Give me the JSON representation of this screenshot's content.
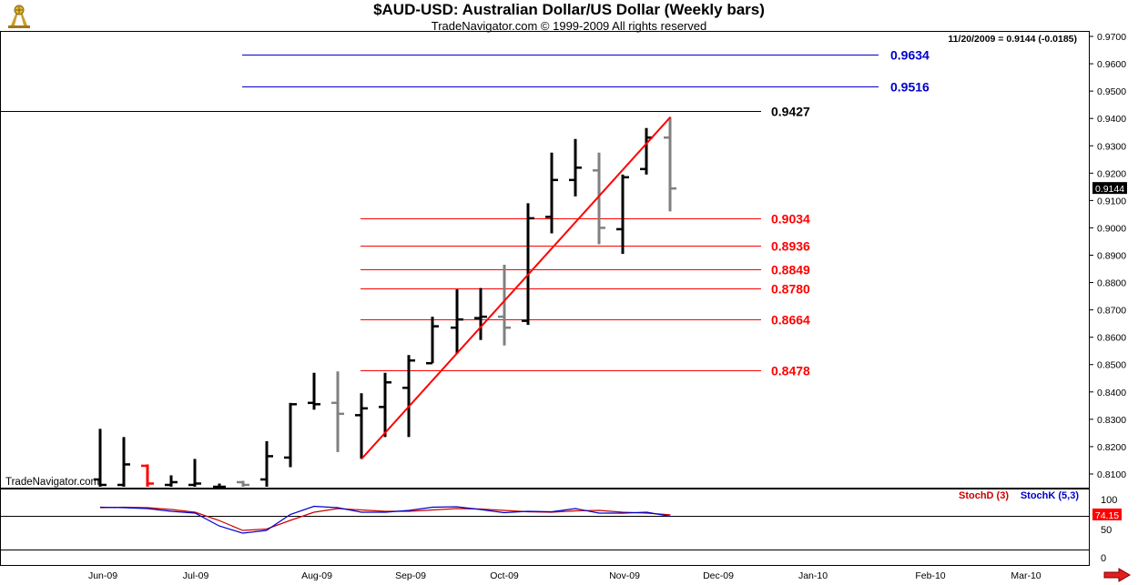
{
  "header": {
    "title": "$AUD-USD:  Australian Dollar/US Dollar  (Weekly bars)",
    "subtitle": "TradeNavigator.com © 1999-2009 All rights reserved",
    "quote": "11/20/2009 = 0.9144 (-0.0185)",
    "watermark": "TradeNavigator.com"
  },
  "colors": {
    "up_bar": "#000000",
    "down_bar": "#808080",
    "highlight_bar": "#ff0000",
    "retracement": "#ff0000",
    "extension": "#0000cc",
    "stoch_d": "#cc0000",
    "stoch_k": "#0000cc"
  },
  "chart_data": [
    {
      "type": "ohlc",
      "title": "$AUD-USD:  Australian Dollar/US Dollar  (Weekly bars)",
      "x_labels": [
        "Jun-09",
        "Jul-09",
        "Aug-09",
        "Sep-09",
        "Oct-09",
        "Nov-09",
        "Dec-09",
        "Jan-10",
        "Feb-10",
        "Mar-10"
      ],
      "y_ticks": [
        "0.8100",
        "0.8200",
        "0.8300",
        "0.8400",
        "0.8500",
        "0.8600",
        "0.8700",
        "0.8800",
        "0.8900",
        "0.9000",
        "0.9100",
        "0.9200",
        "0.9300",
        "0.9400",
        "0.9500",
        "0.9600",
        "0.9700"
      ],
      "ylim": [
        0.805,
        0.972
      ],
      "last_price_label": "0.9144",
      "bars": [
        {
          "date": "2009-06-05",
          "open": 0.808,
          "high": 0.8265,
          "low": 0.805,
          "close": 0.806
        },
        {
          "date": "2009-06-12",
          "open": 0.806,
          "high": 0.8235,
          "low": 0.805,
          "close": 0.8135
        },
        {
          "date": "2009-06-19",
          "open": 0.813,
          "high": 0.8135,
          "low": 0.805,
          "close": 0.8065,
          "color": "highlight"
        },
        {
          "date": "2009-06-26",
          "open": 0.806,
          "high": 0.8095,
          "low": 0.805,
          "close": 0.807
        },
        {
          "date": "2009-07-03",
          "open": 0.806,
          "high": 0.8155,
          "low": 0.805,
          "close": 0.8065
        },
        {
          "date": "2009-07-10",
          "open": 0.805,
          "high": 0.8065,
          "low": 0.805,
          "close": 0.8052
        },
        {
          "date": "2009-07-17",
          "open": 0.807,
          "high": 0.8075,
          "low": 0.805,
          "close": 0.806,
          "color": "down"
        },
        {
          "date": "2009-07-24",
          "open": 0.808,
          "high": 0.822,
          "low": 0.805,
          "close": 0.8165
        },
        {
          "date": "2009-07-31",
          "open": 0.816,
          "high": 0.836,
          "low": 0.8125,
          "close": 0.8355
        },
        {
          "date": "2009-08-07",
          "open": 0.836,
          "high": 0.847,
          "low": 0.8335,
          "close": 0.8355
        },
        {
          "date": "2009-08-14",
          "open": 0.836,
          "high": 0.8475,
          "low": 0.818,
          "close": 0.832,
          "color": "down"
        },
        {
          "date": "2009-08-21",
          "open": 0.8315,
          "high": 0.8395,
          "low": 0.8155,
          "close": 0.834
        },
        {
          "date": "2009-08-28",
          "open": 0.8345,
          "high": 0.847,
          "low": 0.8235,
          "close": 0.8435
        },
        {
          "date": "2009-09-04",
          "open": 0.8415,
          "high": 0.8535,
          "low": 0.8235,
          "close": 0.8515
        },
        {
          "date": "2009-09-11",
          "open": 0.8505,
          "high": 0.8675,
          "low": 0.8505,
          "close": 0.864
        },
        {
          "date": "2009-09-18",
          "open": 0.8635,
          "high": 0.8775,
          "low": 0.854,
          "close": 0.8665
        },
        {
          "date": "2009-09-25",
          "open": 0.867,
          "high": 0.878,
          "low": 0.859,
          "close": 0.8675
        },
        {
          "date": "2009-10-02",
          "open": 0.8675,
          "high": 0.8865,
          "low": 0.857,
          "close": 0.8635,
          "color": "down"
        },
        {
          "date": "2009-10-09",
          "open": 0.866,
          "high": 0.909,
          "low": 0.8645,
          "close": 0.9035
        },
        {
          "date": "2009-10-16",
          "open": 0.904,
          "high": 0.9275,
          "low": 0.898,
          "close": 0.9175
        },
        {
          "date": "2009-10-23",
          "open": 0.9175,
          "high": 0.9325,
          "low": 0.9115,
          "close": 0.922
        },
        {
          "date": "2009-10-30",
          "open": 0.921,
          "high": 0.9275,
          "low": 0.894,
          "close": 0.9,
          "color": "down"
        },
        {
          "date": "2009-11-06",
          "open": 0.8995,
          "high": 0.9195,
          "low": 0.8905,
          "close": 0.9185
        },
        {
          "date": "2009-11-13",
          "open": 0.9215,
          "high": 0.9365,
          "low": 0.9195,
          "close": 0.933
        },
        {
          "date": "2009-11-20",
          "open": 0.933,
          "high": 0.9405,
          "low": 0.906,
          "close": 0.9144,
          "color": "down"
        }
      ],
      "trendline": [
        [
          "2009-08-21",
          0.8155
        ],
        [
          "2009-11-20",
          0.9405
        ]
      ],
      "levels": [
        {
          "value": 0.9634,
          "label": "0.9634",
          "kind": "extension"
        },
        {
          "value": 0.9516,
          "label": "0.9516",
          "kind": "extension"
        },
        {
          "value": 0.9427,
          "label": "0.9427",
          "kind": "high"
        },
        {
          "value": 0.9034,
          "label": "0.9034",
          "kind": "retracement"
        },
        {
          "value": 0.8936,
          "label": "0.8936",
          "kind": "retracement"
        },
        {
          "value": 0.8849,
          "label": "0.8849",
          "kind": "retracement"
        },
        {
          "value": 0.878,
          "label": "0.8780",
          "kind": "retracement"
        },
        {
          "value": 0.8664,
          "label": "0.8664",
          "kind": "retracement"
        },
        {
          "value": 0.8478,
          "label": "0.8478",
          "kind": "retracement"
        }
      ]
    },
    {
      "type": "line",
      "series_labels": [
        "StochD (3)",
        "StochK (5,3)"
      ],
      "y_ticks": [
        "100",
        "50",
        "0"
      ],
      "ylim": [
        0,
        100
      ],
      "last_value_label": "74.15",
      "series": [
        {
          "name": "StochD (3)",
          "color": "stoch_d",
          "values": [
            {
              "date": "2009-06-05",
              "value": 90
            },
            {
              "date": "2009-06-12",
              "value": 91
            },
            {
              "date": "2009-06-19",
              "value": 90
            },
            {
              "date": "2009-06-26",
              "value": 86
            },
            {
              "date": "2009-07-03",
              "value": 80
            },
            {
              "date": "2009-07-10",
              "value": 62
            },
            {
              "date": "2009-07-17",
              "value": 40
            },
            {
              "date": "2009-07-24",
              "value": 43
            },
            {
              "date": "2009-07-31",
              "value": 62
            },
            {
              "date": "2009-08-07",
              "value": 80
            },
            {
              "date": "2009-08-14",
              "value": 88
            },
            {
              "date": "2009-08-21",
              "value": 85
            },
            {
              "date": "2009-08-28",
              "value": 82
            },
            {
              "date": "2009-09-04",
              "value": 82
            },
            {
              "date": "2009-09-11",
              "value": 85
            },
            {
              "date": "2009-09-18",
              "value": 88
            },
            {
              "date": "2009-09-25",
              "value": 87
            },
            {
              "date": "2009-10-02",
              "value": 84
            },
            {
              "date": "2009-10-09",
              "value": 81
            },
            {
              "date": "2009-10-16",
              "value": 80
            },
            {
              "date": "2009-10-23",
              "value": 83
            },
            {
              "date": "2009-10-30",
              "value": 84
            },
            {
              "date": "2009-11-06",
              "value": 80
            },
            {
              "date": "2009-11-13",
              "value": 78
            },
            {
              "date": "2009-11-20",
              "value": 74.15
            }
          ]
        },
        {
          "name": "StochK (5,3)",
          "color": "stoch_k",
          "values": [
            {
              "date": "2009-06-05",
              "value": 91
            },
            {
              "date": "2009-06-12",
              "value": 90
            },
            {
              "date": "2009-06-19",
              "value": 88
            },
            {
              "date": "2009-06-26",
              "value": 82
            },
            {
              "date": "2009-07-03",
              "value": 78
            },
            {
              "date": "2009-07-10",
              "value": 50
            },
            {
              "date": "2009-07-17",
              "value": 34
            },
            {
              "date": "2009-07-24",
              "value": 40
            },
            {
              "date": "2009-07-31",
              "value": 75
            },
            {
              "date": "2009-08-07",
              "value": 93
            },
            {
              "date": "2009-08-14",
              "value": 90
            },
            {
              "date": "2009-08-21",
              "value": 80
            },
            {
              "date": "2009-08-28",
              "value": 80
            },
            {
              "date": "2009-09-04",
              "value": 84
            },
            {
              "date": "2009-09-11",
              "value": 91
            },
            {
              "date": "2009-09-18",
              "value": 92
            },
            {
              "date": "2009-09-25",
              "value": 86
            },
            {
              "date": "2009-10-02",
              "value": 79
            },
            {
              "date": "2009-10-09",
              "value": 82
            },
            {
              "date": "2009-10-16",
              "value": 81
            },
            {
              "date": "2009-10-23",
              "value": 88
            },
            {
              "date": "2009-10-30",
              "value": 78
            },
            {
              "date": "2009-11-06",
              "value": 78
            },
            {
              "date": "2009-11-13",
              "value": 80
            },
            {
              "date": "2009-11-20",
              "value": 71
            }
          ]
        }
      ]
    }
  ]
}
